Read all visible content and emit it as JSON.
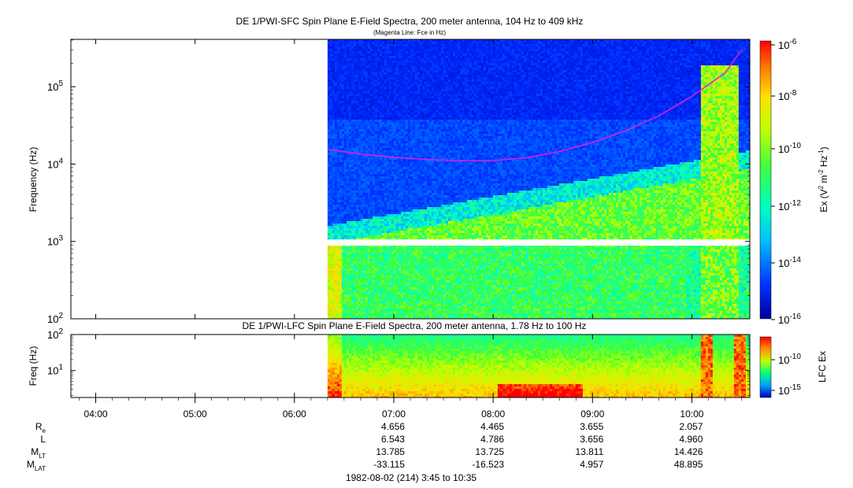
{
  "chart_data": [
    {
      "type": "heatmap",
      "title": "DE 1/PWI-SFC  Spin Plane E-Field Spectra, 200 meter antenna, 104 Hz to 409 kHz",
      "subtitle": "(Magenta Line: Fce in Hz)",
      "ylabel": "Frequency (Hz)",
      "yscale": "log",
      "ylim": [
        100,
        409000
      ],
      "yticks": [
        {
          "value": 100,
          "base": "10",
          "exp": "2"
        },
        {
          "value": 1000,
          "base": "10",
          "exp": "3"
        },
        {
          "value": 10000,
          "base": "10",
          "exp": "4"
        },
        {
          "value": 100000,
          "base": "10",
          "exp": "5"
        }
      ],
      "data_start_time": "06:20",
      "data_end_time": "10:35",
      "data_gap_hz": [
        880,
        1060
      ],
      "fce_line": {
        "color": "#e020e0",
        "time_min": [
          380,
          400,
          420,
          440,
          460,
          480,
          500,
          520,
          540,
          560,
          580,
          600,
          620,
          630
        ],
        "values_hz": [
          15500,
          13500,
          12200,
          11500,
          11000,
          11100,
          12000,
          14500,
          19000,
          27000,
          42000,
          75000,
          150000,
          300000
        ]
      },
      "colorbar": {
        "label_base": "Ex (V",
        "label_sup1": "2",
        "label_mid": " m",
        "label_sup2": "-2",
        "label_mid2": " Hz",
        "label_sup3": "-1",
        "label_end": ")",
        "scale": "log",
        "range": [
          1e-16,
          1e-06
        ],
        "ticks": [
          {
            "base": "10",
            "exp": "-6"
          },
          {
            "base": "10",
            "exp": "-8"
          },
          {
            "base": "10",
            "exp": "-10"
          },
          {
            "base": "10",
            "exp": "-12"
          },
          {
            "base": "10",
            "exp": "-14"
          },
          {
            "base": "10",
            "exp": "-16"
          }
        ]
      }
    },
    {
      "type": "heatmap",
      "title": "DE 1/PWI-LFC  Spin Plane E-Field Spectra, 200 meter antenna, 1.78 Hz to 100 Hz",
      "ylabel": "Freq (Hz)",
      "yscale": "log",
      "ylim": [
        1.78,
        100
      ],
      "yticks": [
        {
          "value": 10,
          "base": "10",
          "exp": "1"
        },
        {
          "value": 100,
          "base": "10",
          "exp": "2"
        }
      ],
      "data_start_time": "06:20",
      "data_end_time": "10:35",
      "colorbar": {
        "label": "LFC Ex",
        "scale": "log",
        "ticks": [
          {
            "base": "10",
            "exp": "-10"
          },
          {
            "base": "10",
            "exp": "-15"
          }
        ]
      }
    }
  ],
  "xaxis": {
    "start_time": "03:45",
    "end_time": "10:35",
    "ticks": [
      "04:00",
      "05:00",
      "06:00",
      "07:00",
      "08:00",
      "09:00",
      "10:00"
    ]
  },
  "ephemeris": {
    "rows": [
      {
        "label": "R",
        "sub": "e",
        "values": [
          "4.656",
          "4.465",
          "3.655",
          "2.057"
        ]
      },
      {
        "label": "L",
        "sub": "",
        "values": [
          "6.543",
          "4.786",
          "3.656",
          "4.960"
        ]
      },
      {
        "label": "M",
        "sub": "LT",
        "values": [
          "13.785",
          "13.725",
          "13.811",
          "14.426"
        ]
      },
      {
        "label": "M",
        "sub": "LAT",
        "values": [
          "-33.115",
          "-16.523",
          "4.957",
          "48.895"
        ]
      }
    ],
    "value_times": [
      "07:00",
      "08:00",
      "09:00",
      "10:00"
    ]
  },
  "footer": "1982-08-02 (214) 3:45 to 10:35"
}
